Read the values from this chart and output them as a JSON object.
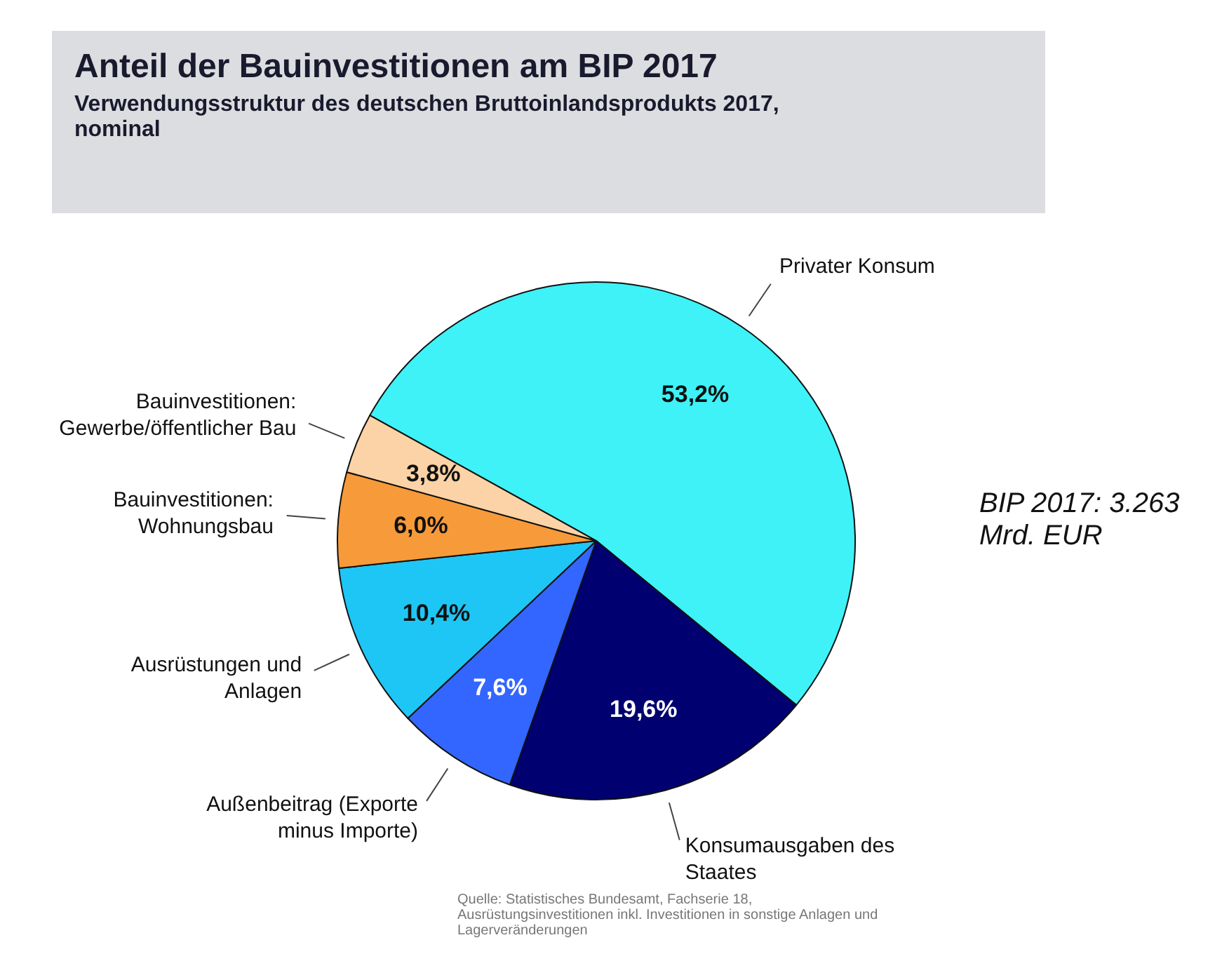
{
  "chart_data": {
    "type": "pie",
    "title": "Anteil der Bauinvestitionen am BIP 2017",
    "subtitle": "Verwendungsstruktur des deutschen Bruttoinlandsprodukts 2017, nominal",
    "categories": [
      "Privater Konsum",
      "Konsumausgaben des Staates",
      "Außenbeitrag (Exporte minus Importe)",
      "Ausrüstungen und Anlagen",
      "Bauinvestitionen: Wohnungsbau",
      "Bauinvestitionen: Gewerbe/öffentlicher Bau"
    ],
    "values": [
      53.2,
      19.6,
      7.6,
      10.4,
      6.0,
      3.8
    ],
    "colors": [
      "#3ef2f7",
      "#000070",
      "#3366ff",
      "#1ec6f5",
      "#f79a3a",
      "#fbd3a6"
    ],
    "value_labels": [
      "53,2%",
      "19,6%",
      "7,6%",
      "10,4%",
      "6,0%",
      "3,8%"
    ],
    "annotations": [
      "BIP 2017: 3.263 Mrd. EUR",
      "Quelle: Statistisches Bundesamt, Fachserie 18, Ausrüstungsinvestitionen inkl. Investitionen in sonstige Anlagen und Lagerveränderungen"
    ]
  }
}
